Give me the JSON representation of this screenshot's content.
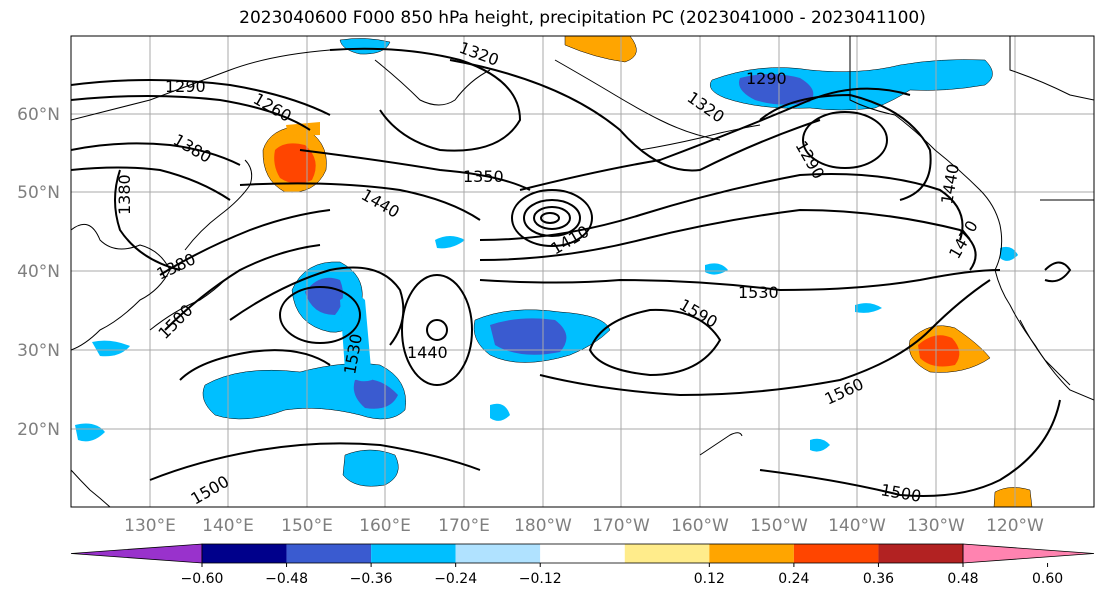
{
  "title": "2023040600 F000 850 hPa height, precipitation PC (2023041000 - 2023041100)",
  "lat_labels": [
    "60°N",
    "50°N",
    "40°N",
    "30°N",
    "20°N"
  ],
  "lon_labels": [
    "130°E",
    "140°E",
    "150°E",
    "160°E",
    "170°E",
    "180°W",
    "170°W",
    "160°W",
    "150°W",
    "140°W",
    "130°W",
    "120°W"
  ],
  "contour_labels": [
    "1290",
    "1260",
    "1320",
    "1380",
    "1380",
    "1380",
    "1350",
    "1440",
    "1410",
    "1290",
    "1320",
    "1290",
    "1470",
    "1440",
    "1500",
    "1530",
    "1530",
    "1590",
    "1560",
    "1500",
    "1500",
    "1440"
  ],
  "colorbar": {
    "ticks": [
      "−0.60",
      "−0.48",
      "−0.36",
      "−0.24",
      "−0.12",
      "0.12",
      "0.24",
      "0.36",
      "0.48",
      "0.60"
    ],
    "colors": [
      "#9932cc",
      "#00008b",
      "#3a5bd0",
      "#00bfff",
      "#b0e2ff",
      "#ffffff",
      "#ffec8b",
      "#ffa500",
      "#ff4500",
      "#b22222",
      "#ff83b0"
    ]
  }
}
